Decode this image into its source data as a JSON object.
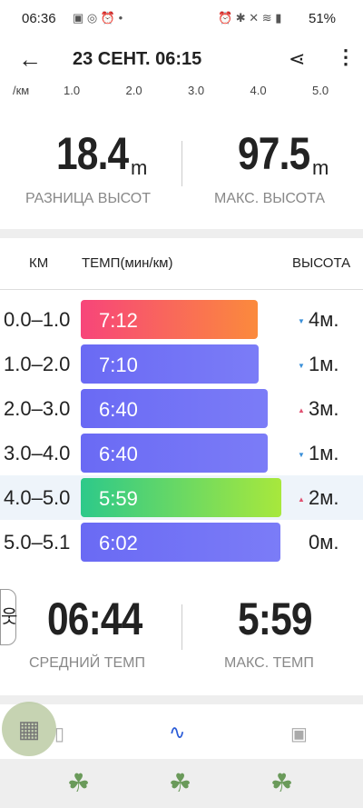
{
  "status_bar": {
    "time": "06:36",
    "battery": "51%"
  },
  "header": {
    "title": "23 СЕНТ. 06:15"
  },
  "axis": {
    "unit": "/км",
    "ticks": [
      "1.0",
      "2.0",
      "3.0",
      "4.0",
      "5.0"
    ]
  },
  "stats_top": [
    {
      "value": "18.4",
      "unit": "m",
      "label": "РАЗНИЦА ВЫСОТ"
    },
    {
      "value": "97.5",
      "unit": "m",
      "label": "МАКС. ВЫСОТА"
    }
  ],
  "table": {
    "columns": [
      "КМ",
      "ТЕМП(мин/км)",
      "ВЫСОТА"
    ],
    "rows": [
      [
        "0.0–1.0",
        "7:12",
        "4м."
      ],
      [
        "1.0–2.0",
        "7:10",
        "1м."
      ],
      [
        "2.0–3.0",
        "6:40",
        "3м."
      ],
      [
        "3.0–4.0",
        "6:40",
        "1м."
      ],
      [
        "4.0–5.0",
        "5:59",
        "2м."
      ],
      [
        "5.0–5.1",
        "6:02",
        "0м."
      ]
    ]
  },
  "stats_bottom": [
    {
      "value": "06:44",
      "label": "СРЕДНИЙ ТЕМП"
    },
    {
      "value": "5:59",
      "label": "МАКС. ТЕМП"
    }
  ]
}
